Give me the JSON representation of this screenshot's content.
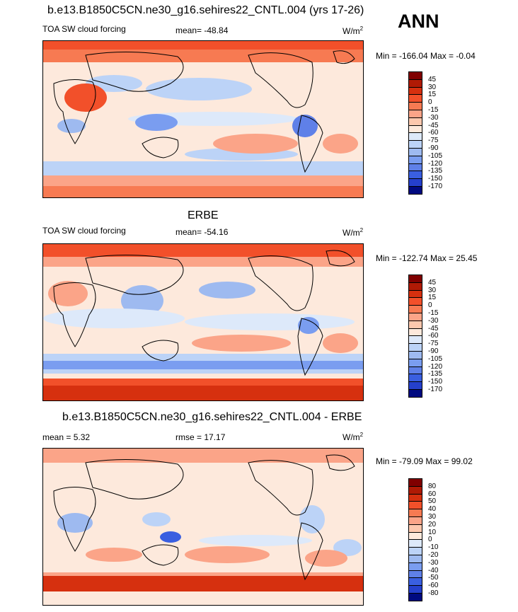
{
  "panels": [
    {
      "title": "b.e13.B1850C5CN.ne30_g16.sehires22_CNTL.004 (yrs 17-26)",
      "left_label": "TOA SW cloud forcing",
      "center_label": "mean= -48.84",
      "units": "W/m",
      "units_sup": "2",
      "minmax": "Min = -166.04 Max =  -0.04",
      "colorbar_labels": [
        "45",
        "30",
        "15",
        "0",
        "-15",
        "-30",
        "-45",
        "-60",
        "-75",
        "-90",
        "-105",
        "-120",
        "-135",
        "-150",
        "-170"
      ]
    },
    {
      "title": "ERBE",
      "left_label": "TOA SW cloud forcing",
      "center_label": "mean= -54.16",
      "units": "W/m",
      "units_sup": "2",
      "minmax": "Min = -122.74 Max =  25.45",
      "colorbar_labels": [
        "45",
        "30",
        "15",
        "0",
        "-15",
        "-30",
        "-45",
        "-60",
        "-75",
        "-90",
        "-105",
        "-120",
        "-135",
        "-150",
        "-170"
      ]
    },
    {
      "title": "b.e13.B1850C5CN.ne30_g16.sehires22_CNTL.004 - ERBE",
      "left_label": "mean =   5.32",
      "center_label": "rmse =  17.17",
      "units": "W/m",
      "units_sup": "2",
      "minmax": "Min = -79.09 Max =  99.02",
      "colorbar_labels": [
        "80",
        "60",
        "50",
        "40",
        "30",
        "20",
        "10",
        "0",
        "-10",
        "-20",
        "-30",
        "-40",
        "-50",
        "-60",
        "-80"
      ]
    }
  ],
  "season": "ANN",
  "colors": {
    "scale": [
      "#800000",
      "#b01a05",
      "#d6300f",
      "#f2502a",
      "#f77a52",
      "#fba488",
      "#fdc8ae",
      "#fde9dc",
      "#ffffff",
      "#dde9fa",
      "#bcd3f7",
      "#9ebaf0",
      "#7a9df0",
      "#5f80e8",
      "#3a5fe0",
      "#2540cc",
      "#1428a8",
      "#000a80"
    ],
    "land_outline": "#000000"
  },
  "chart_data": [
    {
      "type": "heatmap",
      "title": "b.e13.B1850C5CN.ne30_g16.sehires22_CNTL.004 (yrs 17-26)",
      "variable": "TOA SW cloud forcing",
      "units": "W/m2",
      "mean": -48.84,
      "min": -166.04,
      "max": -0.04,
      "contour_levels": [
        -170,
        -150,
        -135,
        -120,
        -105,
        -90,
        -75,
        -60,
        -45,
        -30,
        -15,
        0,
        15,
        30,
        45
      ]
    },
    {
      "type": "heatmap",
      "title": "ERBE",
      "variable": "TOA SW cloud forcing",
      "units": "W/m2",
      "mean": -54.16,
      "min": -122.74,
      "max": 25.45,
      "contour_levels": [
        -170,
        -150,
        -135,
        -120,
        -105,
        -90,
        -75,
        -60,
        -45,
        -30,
        -15,
        0,
        15,
        30,
        45
      ]
    },
    {
      "type": "heatmap",
      "title": "b.e13.B1850C5CN.ne30_g16.sehires22_CNTL.004 - ERBE",
      "units": "W/m2",
      "mean": 5.32,
      "rmse": 17.17,
      "min": -79.09,
      "max": 99.02,
      "contour_levels": [
        -80,
        -60,
        -50,
        -40,
        -30,
        -20,
        -10,
        0,
        10,
        20,
        30,
        40,
        50,
        60,
        80
      ]
    }
  ]
}
